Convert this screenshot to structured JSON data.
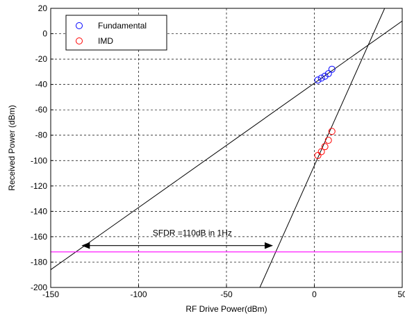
{
  "chart_data": {
    "type": "scatter",
    "title": "",
    "xlabel": "RF Drive Power(dBm)",
    "ylabel": "Received Power (dBm)",
    "xlim": [
      -150,
      50
    ],
    "ylim": [
      -200,
      20
    ],
    "xticks": [
      -150,
      -100,
      -50,
      0,
      50
    ],
    "yticks": [
      -200,
      -180,
      -160,
      -140,
      -120,
      -100,
      -80,
      -60,
      -40,
      -20,
      0,
      20
    ],
    "grid": "dashed",
    "legend_position": "top-left",
    "series": [
      {
        "name": "Fundamental",
        "marker": "open-circle",
        "color": "#0000ff",
        "x": [
          2,
          4,
          6,
          8,
          10
        ],
        "y": [
          -36.5,
          -35,
          -33.5,
          -31.5,
          -28
        ]
      },
      {
        "name": "IMD",
        "marker": "open-circle",
        "color": "#ff0000",
        "x": [
          2,
          4,
          6,
          8,
          10
        ],
        "y": [
          -96,
          -93,
          -89,
          -84,
          -77
        ]
      }
    ],
    "fit_lines": [
      {
        "label": "fundamental-fit",
        "color": "#000000",
        "x": [
          -150,
          50
        ],
        "y": [
          -186,
          10
        ]
      },
      {
        "label": "imd-fit",
        "color": "#000000",
        "x": [
          -31,
          40
        ],
        "y": [
          -200,
          20
        ]
      }
    ],
    "noise_floor": {
      "color": "#ff00ff",
      "y": -172
    },
    "sfdr_arrow": {
      "x_start": -132,
      "x_end": -24,
      "y": -167
    },
    "annotation": {
      "text": "SFDR =110dB in 1Hz",
      "x": -92,
      "y": -157
    }
  }
}
